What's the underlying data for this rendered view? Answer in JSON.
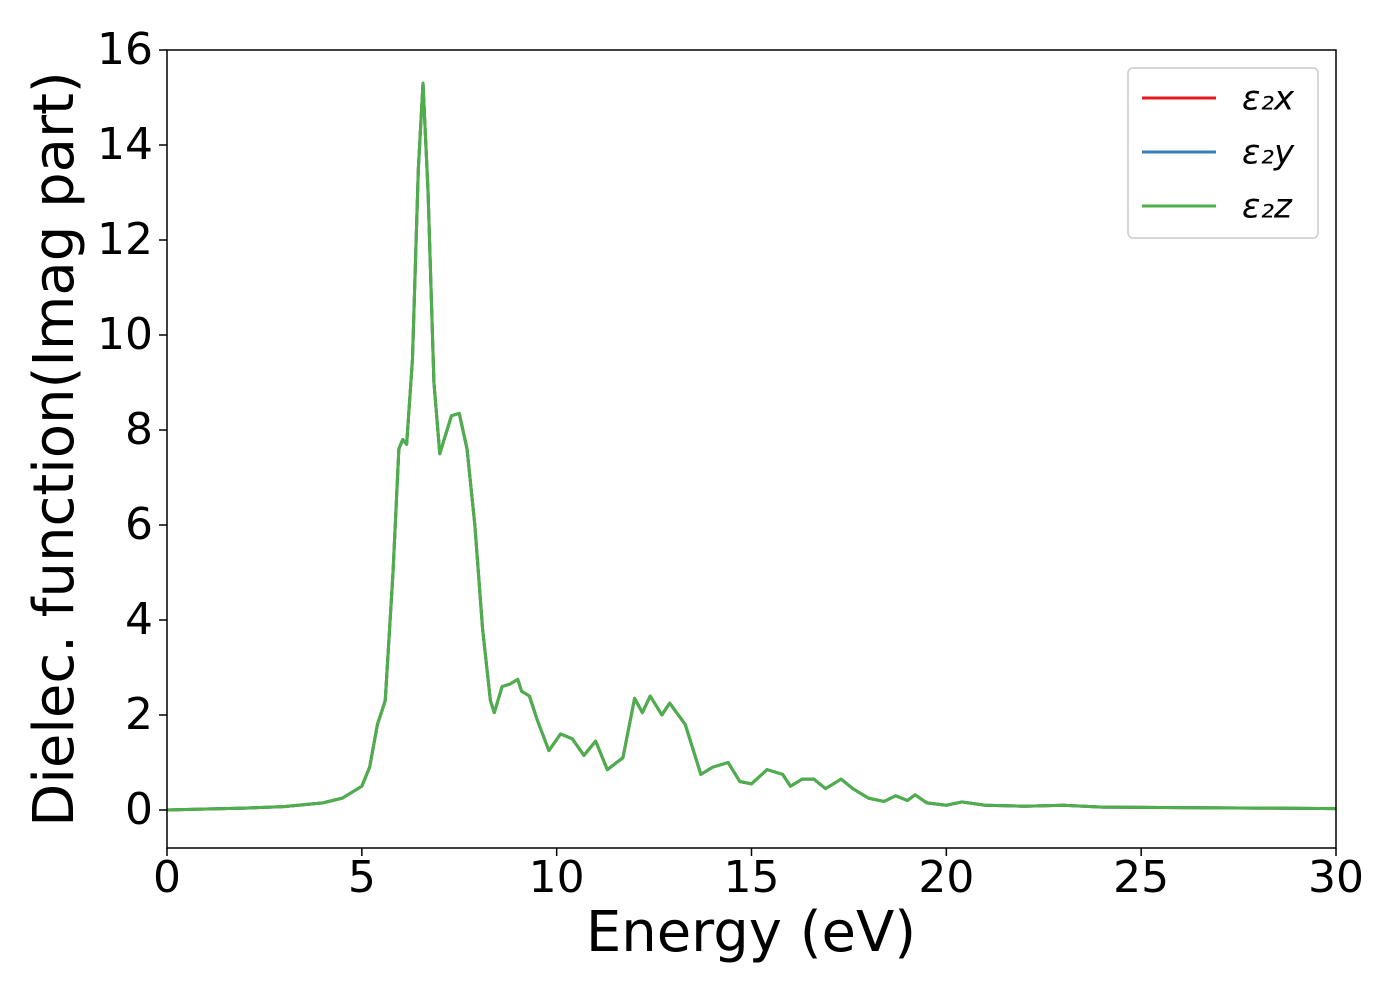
{
  "chart_data": {
    "type": "line",
    "xlabel": "Energy (eV)",
    "ylabel": "Dielec. function(Imag part)",
    "x": [
      0,
      1,
      2,
      3,
      4,
      4.5,
      5.0,
      5.2,
      5.4,
      5.6,
      5.8,
      5.95,
      6.05,
      6.15,
      6.3,
      6.45,
      6.57,
      6.7,
      6.85,
      7.0,
      7.15,
      7.3,
      7.5,
      7.7,
      7.9,
      8.1,
      8.3,
      8.4,
      8.6,
      8.8,
      9.0,
      9.1,
      9.3,
      9.5,
      9.8,
      10.1,
      10.4,
      10.7,
      11.0,
      11.3,
      11.7,
      12.0,
      12.2,
      12.4,
      12.7,
      12.9,
      13.3,
      13.7,
      14.0,
      14.4,
      14.7,
      15.0,
      15.4,
      15.8,
      16.0,
      16.3,
      16.6,
      16.9,
      17.3,
      17.6,
      18.0,
      18.4,
      18.7,
      19.0,
      19.2,
      19.5,
      20.0,
      20.4,
      21.0,
      22.0,
      23.0,
      24.0,
      26.0,
      28.0,
      30.0
    ],
    "series": [
      {
        "name": "ε₂x",
        "color": "#e41a1c",
        "values": [
          0.0,
          0.02,
          0.04,
          0.07,
          0.15,
          0.25,
          0.5,
          0.9,
          1.8,
          2.3,
          5.0,
          7.6,
          7.8,
          7.7,
          9.5,
          13.5,
          15.3,
          13.0,
          9.0,
          7.5,
          7.9,
          8.3,
          8.35,
          7.6,
          6.0,
          3.8,
          2.3,
          2.05,
          2.6,
          2.65,
          2.75,
          2.5,
          2.4,
          1.9,
          1.25,
          1.6,
          1.5,
          1.15,
          1.45,
          0.85,
          1.1,
          2.35,
          2.05,
          2.4,
          2.0,
          2.25,
          1.8,
          0.75,
          0.9,
          1.0,
          0.6,
          0.55,
          0.85,
          0.75,
          0.5,
          0.65,
          0.65,
          0.45,
          0.65,
          0.45,
          0.25,
          0.18,
          0.3,
          0.2,
          0.32,
          0.15,
          0.1,
          0.17,
          0.1,
          0.08,
          0.1,
          0.06,
          0.05,
          0.04,
          0.03
        ]
      },
      {
        "name": "ε₂y",
        "color": "#377eb8",
        "values": [
          0.0,
          0.02,
          0.04,
          0.07,
          0.15,
          0.25,
          0.5,
          0.9,
          1.8,
          2.3,
          5.0,
          7.6,
          7.8,
          7.7,
          9.5,
          13.5,
          15.3,
          13.0,
          9.0,
          7.5,
          7.9,
          8.3,
          8.35,
          7.6,
          6.0,
          3.8,
          2.3,
          2.05,
          2.6,
          2.65,
          2.75,
          2.5,
          2.4,
          1.9,
          1.25,
          1.6,
          1.5,
          1.15,
          1.45,
          0.85,
          1.1,
          2.35,
          2.05,
          2.4,
          2.0,
          2.25,
          1.8,
          0.75,
          0.9,
          1.0,
          0.6,
          0.55,
          0.85,
          0.75,
          0.5,
          0.65,
          0.65,
          0.45,
          0.65,
          0.45,
          0.25,
          0.18,
          0.3,
          0.2,
          0.32,
          0.15,
          0.1,
          0.17,
          0.1,
          0.08,
          0.1,
          0.06,
          0.05,
          0.04,
          0.03
        ]
      },
      {
        "name": "ε₂z",
        "color": "#4daf4a",
        "values": [
          0.0,
          0.02,
          0.04,
          0.07,
          0.15,
          0.25,
          0.5,
          0.9,
          1.8,
          2.3,
          5.0,
          7.6,
          7.8,
          7.7,
          9.5,
          13.5,
          15.3,
          13.0,
          9.0,
          7.5,
          7.9,
          8.3,
          8.35,
          7.6,
          6.0,
          3.8,
          2.3,
          2.05,
          2.6,
          2.65,
          2.75,
          2.5,
          2.4,
          1.9,
          1.25,
          1.6,
          1.5,
          1.15,
          1.45,
          0.85,
          1.1,
          2.35,
          2.05,
          2.4,
          2.0,
          2.25,
          1.8,
          0.75,
          0.9,
          1.0,
          0.6,
          0.55,
          0.85,
          0.75,
          0.5,
          0.65,
          0.65,
          0.45,
          0.65,
          0.45,
          0.25,
          0.18,
          0.3,
          0.2,
          0.32,
          0.15,
          0.1,
          0.17,
          0.1,
          0.08,
          0.1,
          0.06,
          0.05,
          0.04,
          0.03
        ]
      }
    ],
    "xlim": [
      0,
      30
    ],
    "xticks": [
      0,
      5,
      10,
      15,
      20,
      25,
      30
    ],
    "ylim": [
      -0.8,
      16
    ],
    "yticks": [
      0,
      2,
      4,
      6,
      8,
      10,
      12,
      14,
      16
    ],
    "grid": false,
    "legend": "upper right"
  }
}
